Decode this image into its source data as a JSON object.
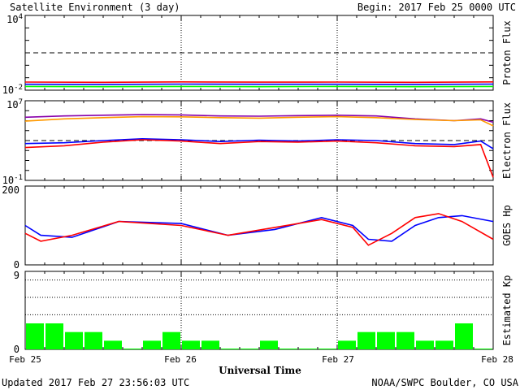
{
  "header": {
    "title": "Satellite Environment (3 day)",
    "begin": "Begin:  2017 Feb 25 0000 UTC"
  },
  "footer": {
    "updated": "Updated 2017 Feb 27 23:56:03 UTC",
    "source": "NOAA/SWPC Boulder, CO USA",
    "xlabel": "Universal Time"
  },
  "x_ticks": [
    "Feb 25",
    "Feb 26",
    "Feb 27",
    "Feb 28"
  ],
  "colors": {
    "red": "#ff0000",
    "blue": "#0000ff",
    "green": "#00ff00",
    "orange": "#ff9900",
    "purple": "#8800aa"
  },
  "chart_data": [
    {
      "type": "line",
      "panel": "proton",
      "ylabel": "Proton Flux",
      "yscale": "log",
      "ylim": [
        0.01,
        10000
      ],
      "ytick_labels": [
        {
          "value": 10000,
          "base": "10",
          "exp": "4"
        },
        {
          "value": 0.01,
          "base": "10",
          "exp": "-2"
        }
      ],
      "threshold": 10,
      "x": [
        0,
        0.5,
        1,
        1.5,
        2,
        2.5,
        3
      ],
      "series": [
        {
          "color": "red",
          "values": [
            0.045,
            0.043,
            0.046,
            0.044,
            0.045,
            0.043,
            0.046
          ]
        },
        {
          "color": "blue",
          "values": [
            0.03,
            0.029,
            0.031,
            0.03,
            0.03,
            0.029,
            0.031
          ]
        },
        {
          "color": "green",
          "values": [
            0.02,
            0.019,
            0.02,
            0.019,
            0.02,
            0.019,
            0.02
          ]
        }
      ]
    },
    {
      "type": "line",
      "panel": "electron",
      "ylabel": "Electron Flux",
      "yscale": "log",
      "ylim": [
        0.1,
        10000000
      ],
      "ytick_labels": [
        {
          "value": 10000000,
          "base": "10",
          "exp": "7"
        },
        {
          "value": 0.1,
          "base": "10",
          "exp": "-1"
        }
      ],
      "threshold": 1000,
      "x": [
        0,
        0.25,
        0.5,
        0.75,
        1,
        1.25,
        1.5,
        1.75,
        2,
        2.25,
        2.5,
        2.75,
        2.92,
        3
      ],
      "series": [
        {
          "color": "purple",
          "values": [
            220000,
            300000,
            350000,
            400000,
            380000,
            300000,
            280000,
            320000,
            350000,
            300000,
            150000,
            100000,
            150000,
            70000
          ]
        },
        {
          "color": "orange",
          "values": [
            90000,
            150000,
            200000,
            250000,
            240000,
            200000,
            180000,
            220000,
            250000,
            200000,
            130000,
            100000,
            120000,
            30000
          ]
        },
        {
          "color": "blue",
          "values": [
            500,
            600,
            1000,
            1500,
            1200,
            800,
            1100,
            900,
            1200,
            1000,
            500,
            400,
            900,
            150
          ]
        },
        {
          "color": "red",
          "values": [
            200,
            300,
            700,
            1200,
            900,
            500,
            800,
            700,
            900,
            600,
            300,
            250,
            400,
            0.2
          ]
        }
      ]
    },
    {
      "type": "line",
      "panel": "goes_hp",
      "ylabel": "GOES Hp",
      "ylim": [
        0,
        200
      ],
      "ytick_labels": [
        {
          "value": 200,
          "label": "200"
        },
        {
          "value": 0,
          "label": "0"
        }
      ],
      "x": [
        0,
        0.1,
        0.3,
        0.6,
        1.0,
        1.3,
        1.6,
        1.9,
        2.1,
        2.2,
        2.35,
        2.5,
        2.65,
        2.8,
        3
      ],
      "series": [
        {
          "color": "blue",
          "values": [
            100,
            75,
            70,
            110,
            105,
            75,
            90,
            120,
            100,
            65,
            60,
            100,
            120,
            125,
            110
          ]
        },
        {
          "color": "red",
          "values": [
            80,
            60,
            75,
            110,
            100,
            75,
            95,
            115,
            95,
            50,
            80,
            120,
            130,
            110,
            65
          ]
        }
      ]
    },
    {
      "type": "bar",
      "panel": "kp",
      "ylabel": "Estimated Kp",
      "ylim": [
        0,
        9
      ],
      "ytick_labels": [
        {
          "value": 9,
          "label": "9"
        },
        {
          "value": 0,
          "label": "0"
        }
      ],
      "bar_width_days": 0.125,
      "values": [
        3,
        3,
        2,
        2,
        1,
        0,
        1,
        2,
        1,
        1,
        0,
        0,
        1,
        0,
        0,
        0,
        1,
        2,
        2,
        2,
        1,
        1,
        3,
        0
      ]
    }
  ]
}
